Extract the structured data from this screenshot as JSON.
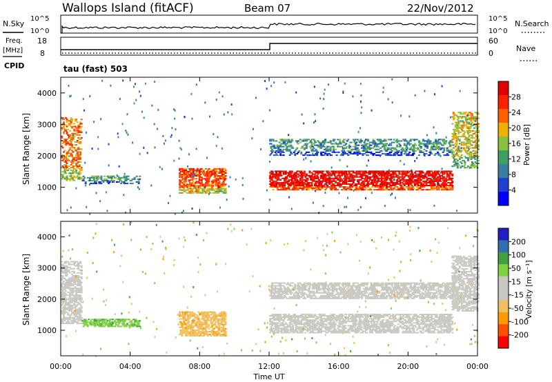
{
  "header": {
    "station": "Wallops Island (fitACF)",
    "beam": "Beam 07",
    "date": "22/Nov/2012"
  },
  "top_panels": {
    "nsky_label": "N.Sky",
    "nsky_ticks": [
      "10^5",
      "10^0"
    ],
    "nsearch_label": "N.Search",
    "nsearch_ticks": [
      "10^5",
      "10^0"
    ],
    "freq_label_1": "Freq.",
    "freq_label_2": "[MHz]",
    "freq_ticks": [
      "18",
      "8"
    ],
    "nave_label": "Nave",
    "nave_ticks": [
      "60",
      "0"
    ],
    "cpid_label": "CPID",
    "cpid_value": "tau (fast) 503"
  },
  "colorbars": {
    "power": {
      "title": "Power [dB]",
      "colors": [
        "#0000ff",
        "#2040d0",
        "#3a7fa0",
        "#3da060",
        "#8cc040",
        "#f0b000",
        "#ff6000",
        "#ff2000",
        "#e00000"
      ],
      "tick_labels": [
        "4",
        "8",
        "12",
        "16",
        "20",
        "24",
        "28"
      ]
    },
    "velocity": {
      "title": "Velocity [m s⁻¹]",
      "colors": [
        "#ff0000",
        "#ff5000",
        "#ff9a00",
        "#f0c060",
        "#c8c8c0",
        "#c8c8c0",
        "#80d040",
        "#40a040",
        "#3070b0",
        "#2020c0"
      ],
      "tick_labels": [
        "-200",
        "-100",
        "-50",
        "-15",
        "15",
        "50",
        "100",
        "200"
      ]
    }
  },
  "chart_data": [
    {
      "type": "heatmap",
      "title": "Power",
      "ylabel": "Slant Range [km]",
      "y_ticks": [
        1000,
        2000,
        3000,
        4000
      ],
      "ylim": [
        180,
        4500
      ],
      "xlim_hours": [
        0,
        24
      ],
      "x_tick_labels": [
        "00:00",
        "04:00",
        "08:00",
        "12:00",
        "16:00",
        "20:00",
        "00:00"
      ],
      "colorbar": "Power [dB]",
      "features": [
        {
          "name": "dusk echoes",
          "t_start": 0.0,
          "t_end": 1.2,
          "r_start": 1200,
          "r_end": 3200,
          "level": 20
        },
        {
          "name": "night 1200 km band",
          "t_start": 1.2,
          "t_end": 4.5,
          "r_start": 1100,
          "r_end": 1350,
          "level": 10
        },
        {
          "name": "morning echoes",
          "t_start": 6.8,
          "t_end": 9.5,
          "r_start": 800,
          "r_end": 1600,
          "level": 22
        },
        {
          "name": "daytime strong band",
          "t_start": 12.0,
          "t_end": 22.5,
          "r_start": 900,
          "r_end": 1500,
          "level": 28
        },
        {
          "name": "daytime upper band",
          "t_start": 12.0,
          "t_end": 22.5,
          "r_start": 2000,
          "r_end": 2500,
          "level": 9
        },
        {
          "name": "evening echoes",
          "t_start": 22.5,
          "t_end": 24.0,
          "r_start": 1600,
          "r_end": 3400,
          "level": 16
        }
      ]
    },
    {
      "type": "heatmap",
      "title": "Velocity",
      "ylabel": "Slant Range [km]",
      "xlabel": "Time UT",
      "y_ticks": [
        1000,
        2000,
        3000,
        4000
      ],
      "ylim": [
        180,
        4500
      ],
      "xlim_hours": [
        0,
        24
      ],
      "x_tick_labels": [
        "00:00",
        "04:00",
        "08:00",
        "12:00",
        "16:00",
        "20:00",
        "00:00"
      ],
      "colorbar": "Velocity [m s⁻¹]",
      "features": [
        {
          "name": "dusk echoes",
          "t_start": 0.0,
          "t_end": 1.2,
          "r_start": 1200,
          "r_end": 3200,
          "level": 0
        },
        {
          "name": "night 1200 km band",
          "t_start": 1.2,
          "t_end": 4.5,
          "r_start": 1100,
          "r_end": 1350,
          "level": 40
        },
        {
          "name": "morning echoes",
          "t_start": 6.8,
          "t_end": 9.5,
          "r_start": 800,
          "r_end": 1600,
          "level": -40
        },
        {
          "name": "daytime ground scatter band",
          "t_start": 12.0,
          "t_end": 22.5,
          "r_start": 900,
          "r_end": 1500,
          "level": 0
        },
        {
          "name": "daytime upper band",
          "t_start": 12.0,
          "t_end": 22.5,
          "r_start": 2000,
          "r_end": 2500,
          "level": 0
        },
        {
          "name": "evening echoes",
          "t_start": 22.5,
          "t_end": 24.0,
          "r_start": 1600,
          "r_end": 3400,
          "level": 0
        }
      ]
    }
  ]
}
